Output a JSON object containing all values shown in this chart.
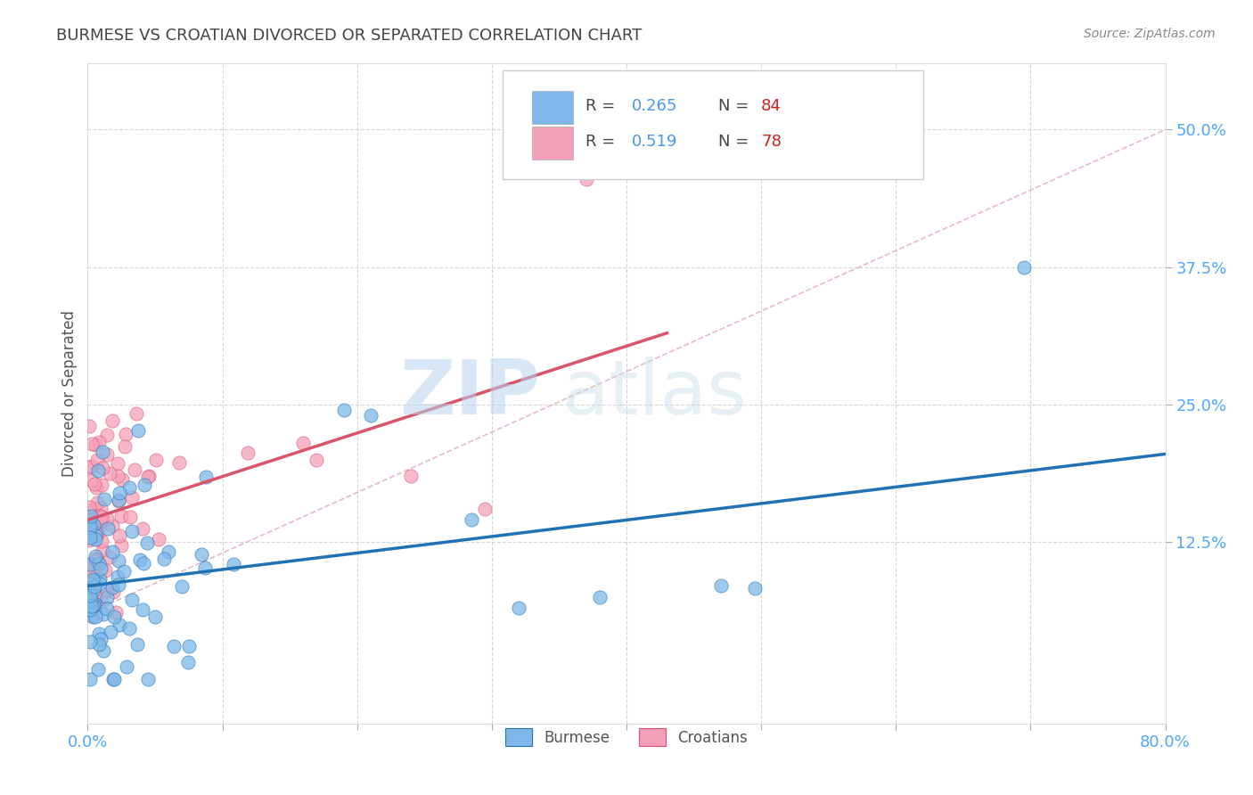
{
  "title": "BURMESE VS CROATIAN DIVORCED OR SEPARATED CORRELATION CHART",
  "source_text": "Source: ZipAtlas.com",
  "ylabel": "Divorced or Separated",
  "xlim": [
    0.0,
    0.8
  ],
  "ylim": [
    -0.04,
    0.56
  ],
  "yticks": [
    0.125,
    0.25,
    0.375,
    0.5
  ],
  "yticklabels": [
    "12.5%",
    "25.0%",
    "37.5%",
    "50.0%"
  ],
  "burmese_color": "#7db8e8",
  "croatian_color": "#f5a0b8",
  "burmese_line_color": "#2171b5",
  "croatian_line_color": "#d9536a",
  "ref_line_color": "#d9a0a8",
  "R_burmese": 0.265,
  "N_burmese": 84,
  "R_croatian": 0.519,
  "N_croatian": 78,
  "legend_label_burmese": "Burmese",
  "legend_label_croatian": "Croatians",
  "watermark": "ZIPatlas",
  "background_color": "#ffffff",
  "grid_color": "#cccccc",
  "title_color": "#444444",
  "axis_label_color": "#555555",
  "tick_label_color": "#4da6ff",
  "source_color": "#888888",
  "legend_r_color": "#4499ee",
  "legend_n_color": "#cc2222",
  "burmese_trend_x": [
    0.0,
    0.8
  ],
  "burmese_trend_y": [
    0.085,
    0.205
  ],
  "croatian_trend_x": [
    0.0,
    0.43
  ],
  "croatian_trend_y": [
    0.145,
    0.315
  ],
  "ref_line_x": [
    0.0,
    0.8
  ],
  "ref_line_y": [
    0.06,
    0.5
  ]
}
